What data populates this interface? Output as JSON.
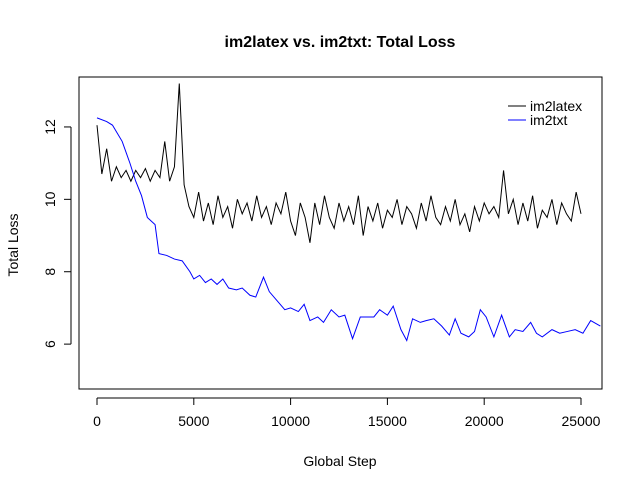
{
  "chart_data": {
    "type": "line",
    "title": "im2latex vs. im2txt: Total Loss",
    "x_label": "Global Step",
    "y_label": "Total Loss",
    "xlim": [
      -930,
      26085
    ],
    "ylim": [
      4.76,
      13.38
    ],
    "xticks": [
      0,
      5000,
      10000,
      15000,
      20000,
      25000
    ],
    "yticks": [
      6,
      8,
      10,
      12
    ],
    "legend": "topright",
    "series": [
      {
        "name": "im2latex",
        "color": "black",
        "x": [
          0,
          250,
          500,
          750,
          1000,
          1250,
          1500,
          1750,
          2000,
          2250,
          2500,
          2750,
          3000,
          3250,
          3500,
          3750,
          4000,
          4250,
          4500,
          4750,
          5000,
          5250,
          5500,
          5750,
          6000,
          6250,
          6500,
          6750,
          7000,
          7250,
          7500,
          7750,
          8000,
          8250,
          8500,
          8750,
          9000,
          9250,
          9500,
          9750,
          10000,
          10250,
          10500,
          10750,
          11000,
          11250,
          11500,
          11750,
          12000,
          12250,
          12500,
          12750,
          13000,
          13250,
          13500,
          13750,
          14000,
          14250,
          14500,
          14750,
          15000,
          15250,
          15500,
          15750,
          16000,
          16250,
          16500,
          16750,
          17000,
          17250,
          17500,
          17750,
          18000,
          18250,
          18500,
          18750,
          19000,
          19250,
          19500,
          19750,
          20000,
          20250,
          20500,
          20750,
          21000,
          21250,
          21500,
          21750,
          22000,
          22250,
          22500,
          22750,
          23000,
          23250,
          23500,
          23750,
          24000,
          24250,
          24500,
          24750,
          25000
        ],
        "values": [
          12.05,
          10.7,
          11.4,
          10.5,
          10.9,
          10.6,
          10.8,
          10.5,
          10.8,
          10.6,
          10.85,
          10.5,
          10.8,
          10.6,
          11.6,
          10.5,
          10.9,
          13.2,
          10.4,
          9.8,
          9.5,
          10.2,
          9.4,
          9.9,
          9.3,
          10.1,
          9.5,
          9.8,
          9.2,
          10.0,
          9.6,
          9.9,
          9.4,
          10.1,
          9.5,
          9.8,
          9.3,
          9.9,
          9.6,
          10.2,
          9.4,
          9.0,
          9.9,
          9.5,
          8.8,
          9.9,
          9.3,
          10.1,
          9.5,
          9.2,
          9.9,
          9.4,
          9.8,
          9.3,
          10.1,
          9.0,
          9.8,
          9.4,
          9.9,
          9.2,
          9.7,
          9.5,
          10.0,
          9.3,
          9.8,
          9.6,
          9.2,
          9.9,
          9.4,
          10.1,
          9.5,
          9.3,
          9.8,
          9.4,
          10.0,
          9.3,
          9.6,
          9.1,
          9.8,
          9.4,
          9.9,
          9.6,
          9.8,
          9.5,
          10.8,
          9.6,
          10.0,
          9.3,
          9.9,
          9.4,
          10.1,
          9.2,
          9.7,
          9.5,
          10.0,
          9.3,
          9.9,
          9.6,
          9.4,
          10.2,
          9.6
        ]
      },
      {
        "name": "im2txt",
        "color": "blue",
        "x": [
          0,
          500,
          800,
          1300,
          1700,
          2000,
          2300,
          2600,
          3000,
          3200,
          3600,
          4000,
          4400,
          4800,
          5000,
          5300,
          5600,
          5900,
          6200,
          6500,
          6800,
          7200,
          7500,
          7900,
          8200,
          8600,
          8900,
          9300,
          9700,
          10000,
          10400,
          10700,
          11000,
          11400,
          11700,
          12100,
          12500,
          12800,
          13200,
          13600,
          14000,
          14300,
          14600,
          15000,
          15300,
          15700,
          16000,
          16300,
          16700,
          17000,
          17400,
          17800,
          18200,
          18500,
          18800,
          19200,
          19500,
          19800,
          20100,
          20500,
          20900,
          21300,
          21600,
          22000,
          22400,
          22700,
          23000,
          23500,
          23900,
          24300,
          24700,
          25100,
          25500,
          26000
        ],
        "values": [
          12.25,
          12.15,
          12.05,
          11.6,
          11.0,
          10.5,
          10.1,
          9.5,
          9.3,
          8.5,
          8.45,
          8.35,
          8.3,
          8.0,
          7.8,
          7.9,
          7.7,
          7.8,
          7.65,
          7.8,
          7.55,
          7.5,
          7.55,
          7.35,
          7.3,
          7.85,
          7.45,
          7.2,
          6.95,
          7.0,
          6.9,
          7.1,
          6.65,
          6.75,
          6.6,
          6.95,
          6.75,
          6.8,
          6.15,
          6.75,
          6.75,
          6.75,
          6.95,
          6.8,
          7.05,
          6.4,
          6.1,
          6.7,
          6.6,
          6.65,
          6.7,
          6.5,
          6.25,
          6.7,
          6.3,
          6.2,
          6.35,
          6.95,
          6.75,
          6.2,
          6.8,
          6.2,
          6.4,
          6.35,
          6.6,
          6.3,
          6.2,
          6.4,
          6.3,
          6.35,
          6.4,
          6.3,
          6.65,
          6.5
        ]
      }
    ]
  }
}
